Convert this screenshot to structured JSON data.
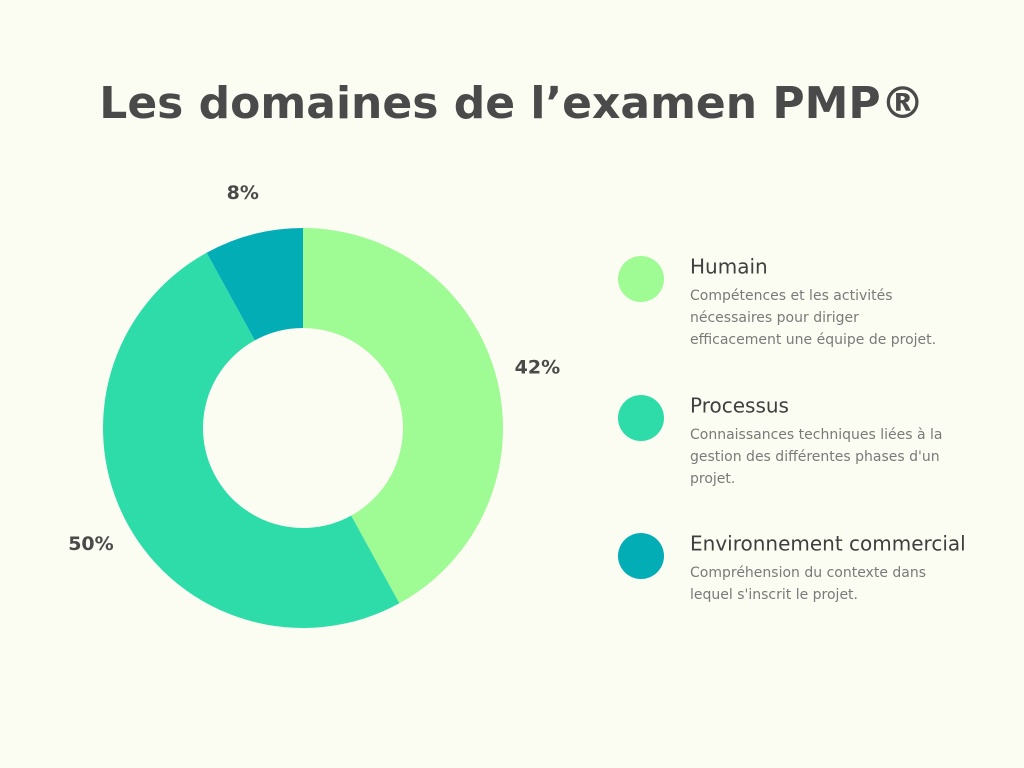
{
  "chart_data": {
    "type": "pie",
    "title": "Les domaines de l’examen PMP®",
    "categories": [
      "Humain",
      "Processus",
      "Environnement commercial"
    ],
    "values": [
      42,
      50,
      8
    ],
    "value_labels": [
      "42%",
      "50%",
      "8%"
    ],
    "colors": [
      "#9ffb93",
      "#2edcaa",
      "#03adb6"
    ],
    "descriptions": [
      [
        "Compétences et les activités",
        "nécessaires pour diriger",
        "efficacement une équipe de projet."
      ],
      [
        "Connaissances techniques liées à la",
        "gestion des différentes phases d'un",
        "projet."
      ],
      [
        "Compréhension du contexte dans",
        "lequel s'inscrit le projet."
      ]
    ]
  }
}
